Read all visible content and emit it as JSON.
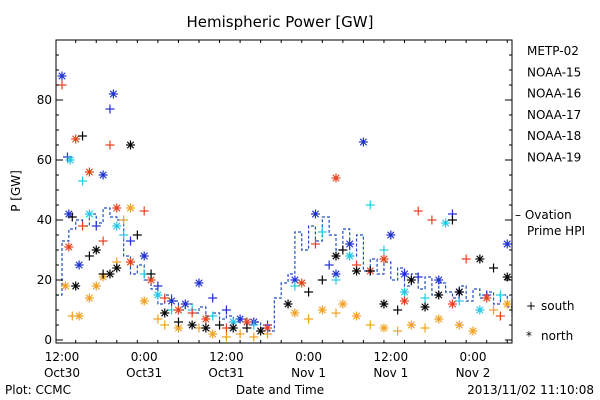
{
  "chart_data": {
    "type": "scatter",
    "title": "Hemispheric Power [GW]",
    "xlabel": "Date and Time",
    "ylabel": "P [GW]",
    "ylim": [
      0,
      100
    ],
    "yticks": [
      0,
      20,
      40,
      60,
      80
    ],
    "xlim_hours": [
      -1,
      78
    ],
    "x_ticks": [
      {
        "h": 0,
        "line1": "12:00",
        "line2": "Oct30"
      },
      {
        "h": 12,
        "line1": "0:00",
        "line2": "Oct31"
      },
      {
        "h": 24,
        "line1": "12:00",
        "line2": "Oct31"
      },
      {
        "h": 36,
        "line1": "0:00",
        "line2": "Nov 1"
      },
      {
        "h": 48,
        "line1": "12:00",
        "line2": "Nov 1"
      },
      {
        "h": 60,
        "line1": "0:00",
        "line2": "Nov 2"
      }
    ],
    "x_note": "x values are hours after 2013-10-30 12:00 UT",
    "footer_left": "Plot: CCMC",
    "footer_right": "2013/11/02 11:10:08",
    "legend_top": [
      {
        "name": "METP-02",
        "color": "#000000"
      },
      {
        "name": "NOAA-15",
        "color": "#1f2fd0"
      },
      {
        "name": "NOAA-16",
        "color": "#22c8e6"
      },
      {
        "name": "NOAA-17",
        "color": "#33e07a"
      },
      {
        "name": "NOAA-18",
        "color": "#f0a020"
      },
      {
        "name": "NOAA-19",
        "color": "#e8401c"
      }
    ],
    "ovation": {
      "line1": "– Ovation",
      "line2": "Prime HPI",
      "color": "#1f4fc0"
    },
    "marker_legend": [
      {
        "symbol": "+",
        "label": "south"
      },
      {
        "symbol": "*",
        "label": "north"
      }
    ],
    "series": [
      {
        "name": "NOAA-15",
        "color": "#1f2fd0",
        "points": [
          [
            0,
            88,
            "*"
          ],
          [
            0.8,
            61,
            "+"
          ],
          [
            1,
            42,
            "*"
          ],
          [
            2.5,
            25,
            "*"
          ],
          [
            5,
            38,
            "+"
          ],
          [
            7,
            77,
            "+"
          ],
          [
            7.5,
            82,
            "*"
          ],
          [
            6,
            55,
            "*"
          ],
          [
            10,
            33,
            "+"
          ],
          [
            12,
            28,
            "*"
          ],
          [
            14,
            18,
            "+"
          ],
          [
            16,
            13,
            "*"
          ],
          [
            18,
            12,
            "*"
          ],
          [
            20,
            19,
            "*"
          ],
          [
            22,
            14,
            "+"
          ],
          [
            24,
            10,
            "+"
          ],
          [
            26,
            7,
            "*"
          ],
          [
            28,
            6,
            "*"
          ],
          [
            30,
            5,
            "+"
          ],
          [
            34,
            20,
            "*"
          ],
          [
            37,
            42,
            "*"
          ],
          [
            39,
            25,
            "+"
          ],
          [
            40,
            22,
            "*"
          ],
          [
            42,
            32,
            "*"
          ],
          [
            44,
            66,
            "*"
          ],
          [
            45,
            23,
            "+"
          ],
          [
            48,
            35,
            "*"
          ],
          [
            50,
            22,
            "*"
          ],
          [
            52,
            21,
            "+"
          ],
          [
            55,
            20,
            "*"
          ],
          [
            57,
            42,
            "+"
          ],
          [
            58,
            16,
            "*"
          ],
          [
            62,
            15,
            "+"
          ],
          [
            65,
            32,
            "*"
          ],
          [
            67,
            12,
            "+"
          ],
          [
            69,
            32,
            "+"
          ]
        ]
      },
      {
        "name": "NOAA-16",
        "color": "#22c8e6",
        "points": [
          [
            1.2,
            60,
            "*"
          ],
          [
            3,
            53,
            "+"
          ],
          [
            4,
            42,
            "*"
          ],
          [
            8,
            38,
            "*"
          ],
          [
            9,
            35,
            "+"
          ],
          [
            12,
            22,
            "+"
          ],
          [
            14,
            15,
            "*"
          ],
          [
            16,
            10,
            "+"
          ],
          [
            19,
            10,
            "+"
          ],
          [
            22,
            8,
            "+"
          ],
          [
            25,
            6,
            "*"
          ],
          [
            28,
            5,
            "+"
          ],
          [
            34,
            18,
            "+"
          ],
          [
            38,
            36,
            "+"
          ],
          [
            40,
            20,
            "+"
          ],
          [
            42,
            28,
            "*"
          ],
          [
            45,
            45,
            "+"
          ],
          [
            47,
            30,
            "+"
          ],
          [
            50,
            16,
            "*"
          ],
          [
            53,
            14,
            "+"
          ],
          [
            56,
            39,
            "*"
          ],
          [
            58,
            13,
            "+"
          ],
          [
            61,
            10,
            "*"
          ],
          [
            64,
            15,
            "+"
          ],
          [
            66,
            12,
            "*"
          ],
          [
            68,
            14,
            "+"
          ]
        ]
      },
      {
        "name": "NOAA-18",
        "color": "#f0a020",
        "points": [
          [
            0.5,
            18,
            "*"
          ],
          [
            1.5,
            8,
            "+"
          ],
          [
            2.5,
            8,
            "*"
          ],
          [
            4,
            14,
            "*"
          ],
          [
            5,
            18,
            "*"
          ],
          [
            6,
            21,
            "*"
          ],
          [
            8,
            26,
            "+"
          ],
          [
            9,
            40,
            "+"
          ],
          [
            10,
            44,
            "*"
          ],
          [
            12,
            13,
            "*"
          ],
          [
            14,
            7,
            "+"
          ],
          [
            15,
            5,
            "+"
          ],
          [
            17,
            4,
            "*"
          ],
          [
            20,
            4,
            "+"
          ],
          [
            22,
            2,
            "*"
          ],
          [
            24,
            1,
            "+"
          ],
          [
            26,
            2,
            "+"
          ],
          [
            28,
            1,
            "+"
          ],
          [
            30,
            2,
            "+"
          ],
          [
            34,
            9,
            "*"
          ],
          [
            36,
            7,
            "+"
          ],
          [
            38,
            10,
            "*"
          ],
          [
            40,
            9,
            "+"
          ],
          [
            41,
            12,
            "*"
          ],
          [
            43,
            8,
            "*"
          ],
          [
            45,
            5,
            "+"
          ],
          [
            47,
            4,
            "*"
          ],
          [
            49,
            3,
            "+"
          ],
          [
            51,
            5,
            "*"
          ],
          [
            53,
            4,
            "+"
          ],
          [
            55,
            7,
            "*"
          ],
          [
            58,
            5,
            "*"
          ],
          [
            60,
            3,
            "*"
          ],
          [
            63,
            10,
            "+"
          ],
          [
            65,
            12,
            "*"
          ],
          [
            68,
            5,
            "*"
          ],
          [
            70,
            7,
            "+"
          ]
        ]
      },
      {
        "name": "NOAA-19",
        "color": "#e8401c",
        "points": [
          [
            0,
            85,
            "+"
          ],
          [
            1,
            31,
            "*"
          ],
          [
            2,
            67,
            "*"
          ],
          [
            3,
            38,
            "+"
          ],
          [
            4,
            56,
            "*"
          ],
          [
            6,
            33,
            "+"
          ],
          [
            7,
            65,
            "+"
          ],
          [
            8,
            44,
            "*"
          ],
          [
            10,
            26,
            "*"
          ],
          [
            12,
            43,
            "+"
          ],
          [
            13,
            20,
            "*"
          ],
          [
            15,
            14,
            "+"
          ],
          [
            17,
            10,
            "*"
          ],
          [
            19,
            9,
            "+"
          ],
          [
            21,
            7,
            "*"
          ],
          [
            24,
            4,
            "+"
          ],
          [
            27,
            6,
            "*"
          ],
          [
            30,
            4,
            "*"
          ],
          [
            35,
            19,
            "*"
          ],
          [
            37,
            32,
            "+"
          ],
          [
            40,
            54,
            "*"
          ],
          [
            43,
            25,
            "+"
          ],
          [
            45,
            23,
            "*"
          ],
          [
            47,
            27,
            "*"
          ],
          [
            50,
            13,
            "*"
          ],
          [
            52,
            43,
            "+"
          ],
          [
            54,
            40,
            "+"
          ],
          [
            57,
            12,
            "*"
          ],
          [
            59,
            27,
            "+"
          ],
          [
            62,
            14,
            "*"
          ],
          [
            64,
            8,
            "+"
          ],
          [
            67,
            12,
            "*"
          ],
          [
            70,
            8,
            "+"
          ]
        ]
      },
      {
        "name": "METP-02",
        "color": "#000000",
        "points": [
          [
            1.5,
            41,
            "+"
          ],
          [
            2,
            18,
            "*"
          ],
          [
            3,
            68,
            "+"
          ],
          [
            4,
            28,
            "+"
          ],
          [
            5,
            30,
            "*"
          ],
          [
            6,
            22,
            "+"
          ],
          [
            7,
            22,
            "*"
          ],
          [
            8,
            24,
            "*"
          ],
          [
            10,
            65,
            "*"
          ],
          [
            11,
            35,
            "+"
          ],
          [
            13,
            22,
            "+"
          ],
          [
            15,
            9,
            "*"
          ],
          [
            17,
            6,
            "+"
          ],
          [
            19,
            5,
            "*"
          ],
          [
            21,
            4,
            "*"
          ],
          [
            23,
            5,
            "+"
          ],
          [
            25,
            4,
            "*"
          ],
          [
            27,
            4,
            "+"
          ],
          [
            29,
            3,
            "*"
          ],
          [
            33,
            12,
            "*"
          ],
          [
            36,
            16,
            "+"
          ],
          [
            38,
            20,
            "+"
          ],
          [
            40,
            28,
            "*"
          ],
          [
            41,
            30,
            "+"
          ],
          [
            43,
            23,
            "*"
          ],
          [
            45,
            23,
            "+"
          ],
          [
            47,
            12,
            "*"
          ],
          [
            49,
            10,
            "+"
          ],
          [
            51,
            20,
            "*"
          ],
          [
            53,
            11,
            "*"
          ],
          [
            55,
            15,
            "*"
          ],
          [
            57,
            40,
            "+"
          ],
          [
            58,
            16,
            "*"
          ],
          [
            61,
            27,
            "*"
          ],
          [
            63,
            24,
            "+"
          ],
          [
            65,
            21,
            "*"
          ],
          [
            66,
            16,
            "+"
          ],
          [
            68,
            17,
            "+"
          ],
          [
            69,
            11,
            "*"
          ],
          [
            70.5,
            6,
            "*"
          ]
        ]
      }
    ],
    "ovation_hpi": [
      [
        -1,
        15
      ],
      [
        0,
        33
      ],
      [
        1,
        37
      ],
      [
        2,
        40
      ],
      [
        3,
        38
      ],
      [
        4,
        42
      ],
      [
        5,
        39
      ],
      [
        6,
        44
      ],
      [
        7,
        41
      ],
      [
        8,
        40
      ],
      [
        9,
        28
      ],
      [
        10,
        22
      ],
      [
        11,
        25
      ],
      [
        12,
        20
      ],
      [
        13,
        17
      ],
      [
        14,
        12
      ],
      [
        15,
        15
      ],
      [
        16,
        13
      ],
      [
        17,
        10
      ],
      [
        18,
        12
      ],
      [
        19,
        9
      ],
      [
        20,
        11
      ],
      [
        21,
        8
      ],
      [
        22,
        9
      ],
      [
        23,
        7
      ],
      [
        24,
        8
      ],
      [
        25,
        6
      ],
      [
        26,
        7
      ],
      [
        27,
        5
      ],
      [
        28,
        6
      ],
      [
        29,
        4
      ],
      [
        30,
        3
      ],
      [
        31,
        14
      ],
      [
        32,
        19
      ],
      [
        33,
        22
      ],
      [
        34,
        36
      ],
      [
        35,
        30
      ],
      [
        36,
        38
      ],
      [
        37,
        33
      ],
      [
        38,
        41
      ],
      [
        39,
        35
      ],
      [
        40,
        30
      ],
      [
        41,
        37
      ],
      [
        42,
        28
      ],
      [
        43,
        35
      ],
      [
        44,
        23
      ],
      [
        45,
        27
      ],
      [
        46,
        22
      ],
      [
        47,
        26
      ],
      [
        48,
        20
      ],
      [
        49,
        24
      ],
      [
        50,
        18
      ],
      [
        51,
        22
      ],
      [
        52,
        17
      ],
      [
        53,
        21
      ],
      [
        54,
        15
      ],
      [
        55,
        19
      ],
      [
        56,
        16
      ],
      [
        57,
        14
      ],
      [
        58,
        18
      ],
      [
        59,
        13
      ],
      [
        60,
        17
      ],
      [
        61,
        14
      ],
      [
        62,
        16
      ],
      [
        63,
        12
      ],
      [
        64,
        15
      ],
      [
        65,
        11
      ],
      [
        66,
        14
      ],
      [
        67,
        10
      ],
      [
        68,
        12
      ],
      [
        69,
        9
      ],
      [
        70,
        13
      ],
      [
        71,
        10
      ],
      [
        72,
        12
      ],
      [
        73,
        8
      ]
    ]
  }
}
